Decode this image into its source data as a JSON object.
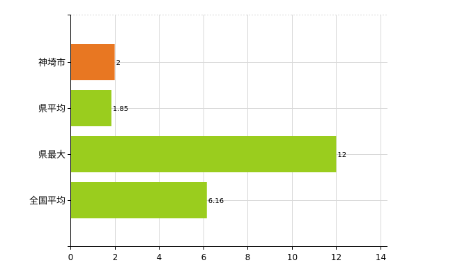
{
  "chart_data": {
    "type": "bar",
    "orientation": "horizontal",
    "categories": [
      "神埼市",
      "県平均",
      "県最大",
      "全国平均"
    ],
    "values": [
      2,
      1.85,
      12,
      6.16
    ],
    "data_labels": [
      "2",
      "1.85",
      "12",
      "6.16"
    ],
    "bar_colors": [
      "#e87722",
      "#9acd1e",
      "#9acd1e",
      "#9acd1e"
    ],
    "xlim": [
      0,
      14
    ],
    "x_ticks": [
      0,
      2,
      4,
      6,
      8,
      10,
      12,
      14
    ],
    "title": "",
    "xlabel": "",
    "ylabel": "",
    "grid": true,
    "legend": false
  }
}
